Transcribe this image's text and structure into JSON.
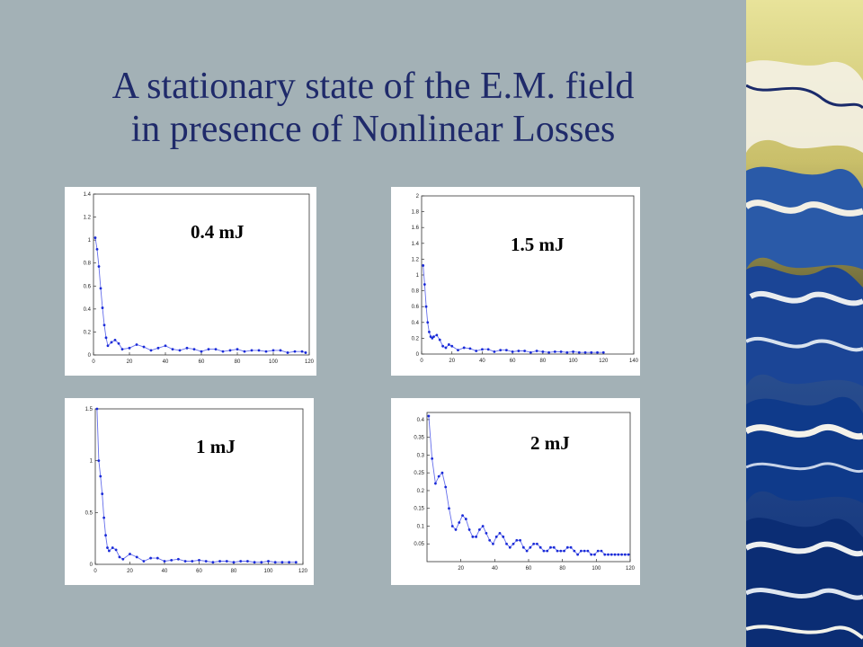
{
  "slide": {
    "title_line1": "A stationary state of the E.M. field",
    "title_line2": "in presence of Nonlinear Losses"
  },
  "colors": {
    "background": "#a3b1b6",
    "title": "#1f2a6a",
    "curve": "#4a55e8",
    "points": "#1a2bd8"
  },
  "decoration": {
    "name": "great-wave-artwork"
  },
  "chart_data": [
    {
      "type": "line",
      "label": "0.4 mJ",
      "xlim": [
        0,
        120
      ],
      "ylim": [
        0,
        1.4
      ],
      "xticks": [
        0,
        20,
        40,
        60,
        80,
        100,
        120
      ],
      "yticks": [
        0,
        0.2,
        0.4,
        0.6,
        0.8,
        1,
        1.2,
        1.4
      ],
      "ytick_labels": [
        "0",
        "0.2",
        "0.4",
        "0.6",
        "0.8",
        "1",
        "1.2",
        "1.4"
      ],
      "series": [
        {
          "values": [
            [
              1,
              1.02
            ],
            [
              2,
              0.92
            ],
            [
              3,
              0.77
            ],
            [
              4,
              0.58
            ],
            [
              5,
              0.41
            ],
            [
              6,
              0.26
            ],
            [
              7,
              0.15
            ],
            [
              8,
              0.08
            ],
            [
              10,
              0.11
            ],
            [
              12,
              0.13
            ],
            [
              14,
              0.1
            ],
            [
              16,
              0.05
            ],
            [
              20,
              0.06
            ],
            [
              24,
              0.09
            ],
            [
              28,
              0.07
            ],
            [
              32,
              0.04
            ],
            [
              36,
              0.06
            ],
            [
              40,
              0.08
            ],
            [
              44,
              0.05
            ],
            [
              48,
              0.04
            ],
            [
              52,
              0.06
            ],
            [
              56,
              0.05
            ],
            [
              60,
              0.03
            ],
            [
              64,
              0.05
            ],
            [
              68,
              0.05
            ],
            [
              72,
              0.03
            ],
            [
              76,
              0.04
            ],
            [
              80,
              0.05
            ],
            [
              84,
              0.03
            ],
            [
              88,
              0.04
            ],
            [
              92,
              0.04
            ],
            [
              96,
              0.03
            ],
            [
              100,
              0.04
            ],
            [
              104,
              0.04
            ],
            [
              108,
              0.02
            ],
            [
              112,
              0.03
            ],
            [
              116,
              0.03
            ],
            [
              118,
              0.02
            ]
          ]
        }
      ]
    },
    {
      "type": "line",
      "label": "1.5 mJ",
      "xlim": [
        0,
        140
      ],
      "ylim": [
        0,
        2
      ],
      "xticks": [
        0,
        20,
        40,
        60,
        80,
        100,
        120,
        140
      ],
      "yticks": [
        0,
        0.2,
        0.4,
        0.6,
        0.8,
        1,
        1.2,
        1.4,
        1.6,
        1.8,
        2
      ],
      "ytick_labels": [
        "0",
        "0.2",
        "0.4",
        "0.6",
        "0.8",
        "1",
        "1.2",
        "1.4",
        "1.6",
        "1.8",
        "2"
      ],
      "series": [
        {
          "values": [
            [
              1,
              1.12
            ],
            [
              2,
              0.88
            ],
            [
              3,
              0.6
            ],
            [
              4,
              0.4
            ],
            [
              5,
              0.28
            ],
            [
              6,
              0.22
            ],
            [
              7,
              0.2
            ],
            [
              8,
              0.22
            ],
            [
              10,
              0.24
            ],
            [
              12,
              0.18
            ],
            [
              14,
              0.1
            ],
            [
              16,
              0.08
            ],
            [
              18,
              0.12
            ],
            [
              20,
              0.1
            ],
            [
              24,
              0.05
            ],
            [
              28,
              0.08
            ],
            [
              32,
              0.07
            ],
            [
              36,
              0.04
            ],
            [
              40,
              0.06
            ],
            [
              44,
              0.06
            ],
            [
              48,
              0.03
            ],
            [
              52,
              0.05
            ],
            [
              56,
              0.05
            ],
            [
              60,
              0.03
            ],
            [
              64,
              0.04
            ],
            [
              68,
              0.04
            ],
            [
              72,
              0.02
            ],
            [
              76,
              0.04
            ],
            [
              80,
              0.03
            ],
            [
              84,
              0.02
            ],
            [
              88,
              0.03
            ],
            [
              92,
              0.03
            ],
            [
              96,
              0.02
            ],
            [
              100,
              0.03
            ],
            [
              104,
              0.02
            ],
            [
              108,
              0.02
            ],
            [
              112,
              0.02
            ],
            [
              116,
              0.02
            ],
            [
              120,
              0.02
            ]
          ]
        }
      ]
    },
    {
      "type": "line",
      "label": "1 mJ",
      "xlim": [
        0,
        120
      ],
      "ylim": [
        0,
        1.5
      ],
      "xticks": [
        0,
        20,
        40,
        60,
        80,
        100,
        120
      ],
      "yticks": [
        0,
        0.5,
        1,
        1.5
      ],
      "ytick_labels": [
        "0",
        "0.5",
        "1",
        "1.5"
      ],
      "series": [
        {
          "values": [
            [
              1,
              1.5
            ],
            [
              2,
              1.0
            ],
            [
              3,
              0.85
            ],
            [
              4,
              0.68
            ],
            [
              5,
              0.45
            ],
            [
              6,
              0.28
            ],
            [
              7,
              0.16
            ],
            [
              8,
              0.13
            ],
            [
              10,
              0.16
            ],
            [
              12,
              0.14
            ],
            [
              14,
              0.07
            ],
            [
              16,
              0.05
            ],
            [
              20,
              0.1
            ],
            [
              24,
              0.07
            ],
            [
              28,
              0.03
            ],
            [
              32,
              0.06
            ],
            [
              36,
              0.06
            ],
            [
              40,
              0.03
            ],
            [
              44,
              0.04
            ],
            [
              48,
              0.05
            ],
            [
              52,
              0.03
            ],
            [
              56,
              0.03
            ],
            [
              60,
              0.04
            ],
            [
              64,
              0.03
            ],
            [
              68,
              0.02
            ],
            [
              72,
              0.03
            ],
            [
              76,
              0.03
            ],
            [
              80,
              0.02
            ],
            [
              84,
              0.03
            ],
            [
              88,
              0.03
            ],
            [
              92,
              0.02
            ],
            [
              96,
              0.02
            ],
            [
              100,
              0.03
            ],
            [
              104,
              0.02
            ],
            [
              108,
              0.02
            ],
            [
              112,
              0.02
            ],
            [
              116,
              0.02
            ]
          ]
        }
      ]
    },
    {
      "type": "line",
      "label": "2 mJ",
      "xlim": [
        0,
        120
      ],
      "ylim": [
        0,
        0.42
      ],
      "xticks": [
        20,
        40,
        60,
        80,
        100,
        120
      ],
      "yticks": [
        0.05,
        0.1,
        0.15,
        0.2,
        0.25,
        0.3,
        0.35,
        0.4
      ],
      "ytick_labels": [
        "0.05",
        "0.1",
        "0.15",
        "0.2",
        "0.25",
        "0.3",
        "0.35",
        "0.4"
      ],
      "series": [
        {
          "values": [
            [
              1,
              0.41
            ],
            [
              3,
              0.29
            ],
            [
              5,
              0.22
            ],
            [
              7,
              0.24
            ],
            [
              9,
              0.25
            ],
            [
              11,
              0.21
            ],
            [
              13,
              0.15
            ],
            [
              15,
              0.1
            ],
            [
              17,
              0.09
            ],
            [
              19,
              0.11
            ],
            [
              21,
              0.13
            ],
            [
              23,
              0.12
            ],
            [
              25,
              0.09
            ],
            [
              27,
              0.07
            ],
            [
              29,
              0.07
            ],
            [
              31,
              0.09
            ],
            [
              33,
              0.1
            ],
            [
              35,
              0.08
            ],
            [
              37,
              0.06
            ],
            [
              39,
              0.05
            ],
            [
              41,
              0.07
            ],
            [
              43,
              0.08
            ],
            [
              45,
              0.07
            ],
            [
              47,
              0.05
            ],
            [
              49,
              0.04
            ],
            [
              51,
              0.05
            ],
            [
              53,
              0.06
            ],
            [
              55,
              0.06
            ],
            [
              57,
              0.04
            ],
            [
              59,
              0.03
            ],
            [
              61,
              0.04
            ],
            [
              63,
              0.05
            ],
            [
              65,
              0.05
            ],
            [
              67,
              0.04
            ],
            [
              69,
              0.03
            ],
            [
              71,
              0.03
            ],
            [
              73,
              0.04
            ],
            [
              75,
              0.04
            ],
            [
              77,
              0.03
            ],
            [
              79,
              0.03
            ],
            [
              81,
              0.03
            ],
            [
              83,
              0.04
            ],
            [
              85,
              0.04
            ],
            [
              87,
              0.03
            ],
            [
              89,
              0.02
            ],
            [
              91,
              0.03
            ],
            [
              93,
              0.03
            ],
            [
              95,
              0.03
            ],
            [
              97,
              0.02
            ],
            [
              99,
              0.02
            ],
            [
              101,
              0.03
            ],
            [
              103,
              0.03
            ],
            [
              105,
              0.02
            ],
            [
              107,
              0.02
            ],
            [
              109,
              0.02
            ],
            [
              111,
              0.02
            ],
            [
              113,
              0.02
            ],
            [
              115,
              0.02
            ],
            [
              117,
              0.02
            ],
            [
              119,
              0.02
            ]
          ]
        }
      ]
    }
  ]
}
